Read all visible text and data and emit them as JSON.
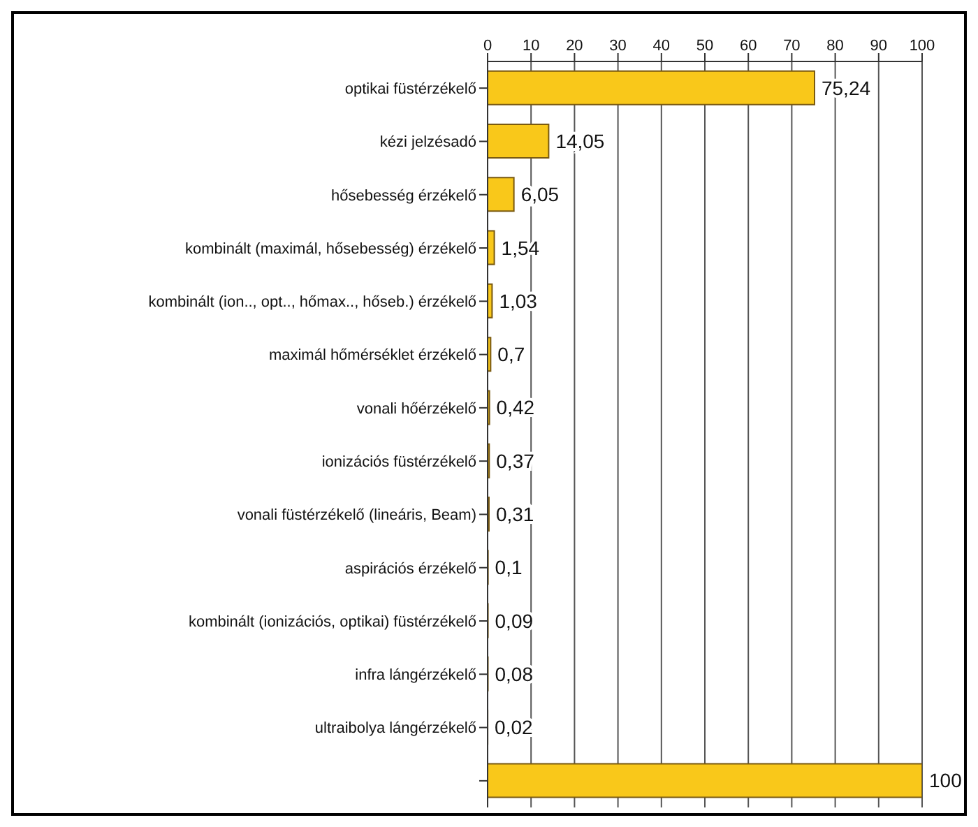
{
  "chart_data": {
    "type": "bar",
    "orientation": "horizontal",
    "categories": [
      "optikai füstérzékelő",
      "kézi jelzésadó",
      "hősebesség érzékelő",
      "kombinált (maximál, hősebesség) érzékelő",
      "kombinált (ion.., opt.., hőmax.., hőseb.) érzékelő",
      "maximál hőmérséklet érzékelő",
      "vonali hőérzékelő",
      "ionizációs füstérzékelő",
      "vonali füstérzékelő (lineáris, Beam)",
      "aspirációs érzékelő",
      "kombinált (ionizációs, optikai) füstérzékelő",
      "infra lángérzékelő",
      "ultraibolya lángérzékelő",
      null
    ],
    "values": [
      75.24,
      14.05,
      6.05,
      1.54,
      1.03,
      0.7,
      0.42,
      0.37,
      0.31,
      0.1,
      0.09,
      0.08,
      0.02,
      100
    ],
    "value_labels": [
      "75,24",
      "14,05",
      "6,05",
      "1,54",
      "1,03",
      "0,7",
      "0,42",
      "0,37",
      "0,31",
      "0,1",
      "0,09",
      "0,08",
      "0,02",
      "100"
    ],
    "color": "#f9c81a",
    "xlim": [
      0,
      100
    ],
    "xticks": [
      0,
      10,
      20,
      30,
      40,
      50,
      60,
      70,
      80,
      90,
      100
    ],
    "grid": "x"
  }
}
